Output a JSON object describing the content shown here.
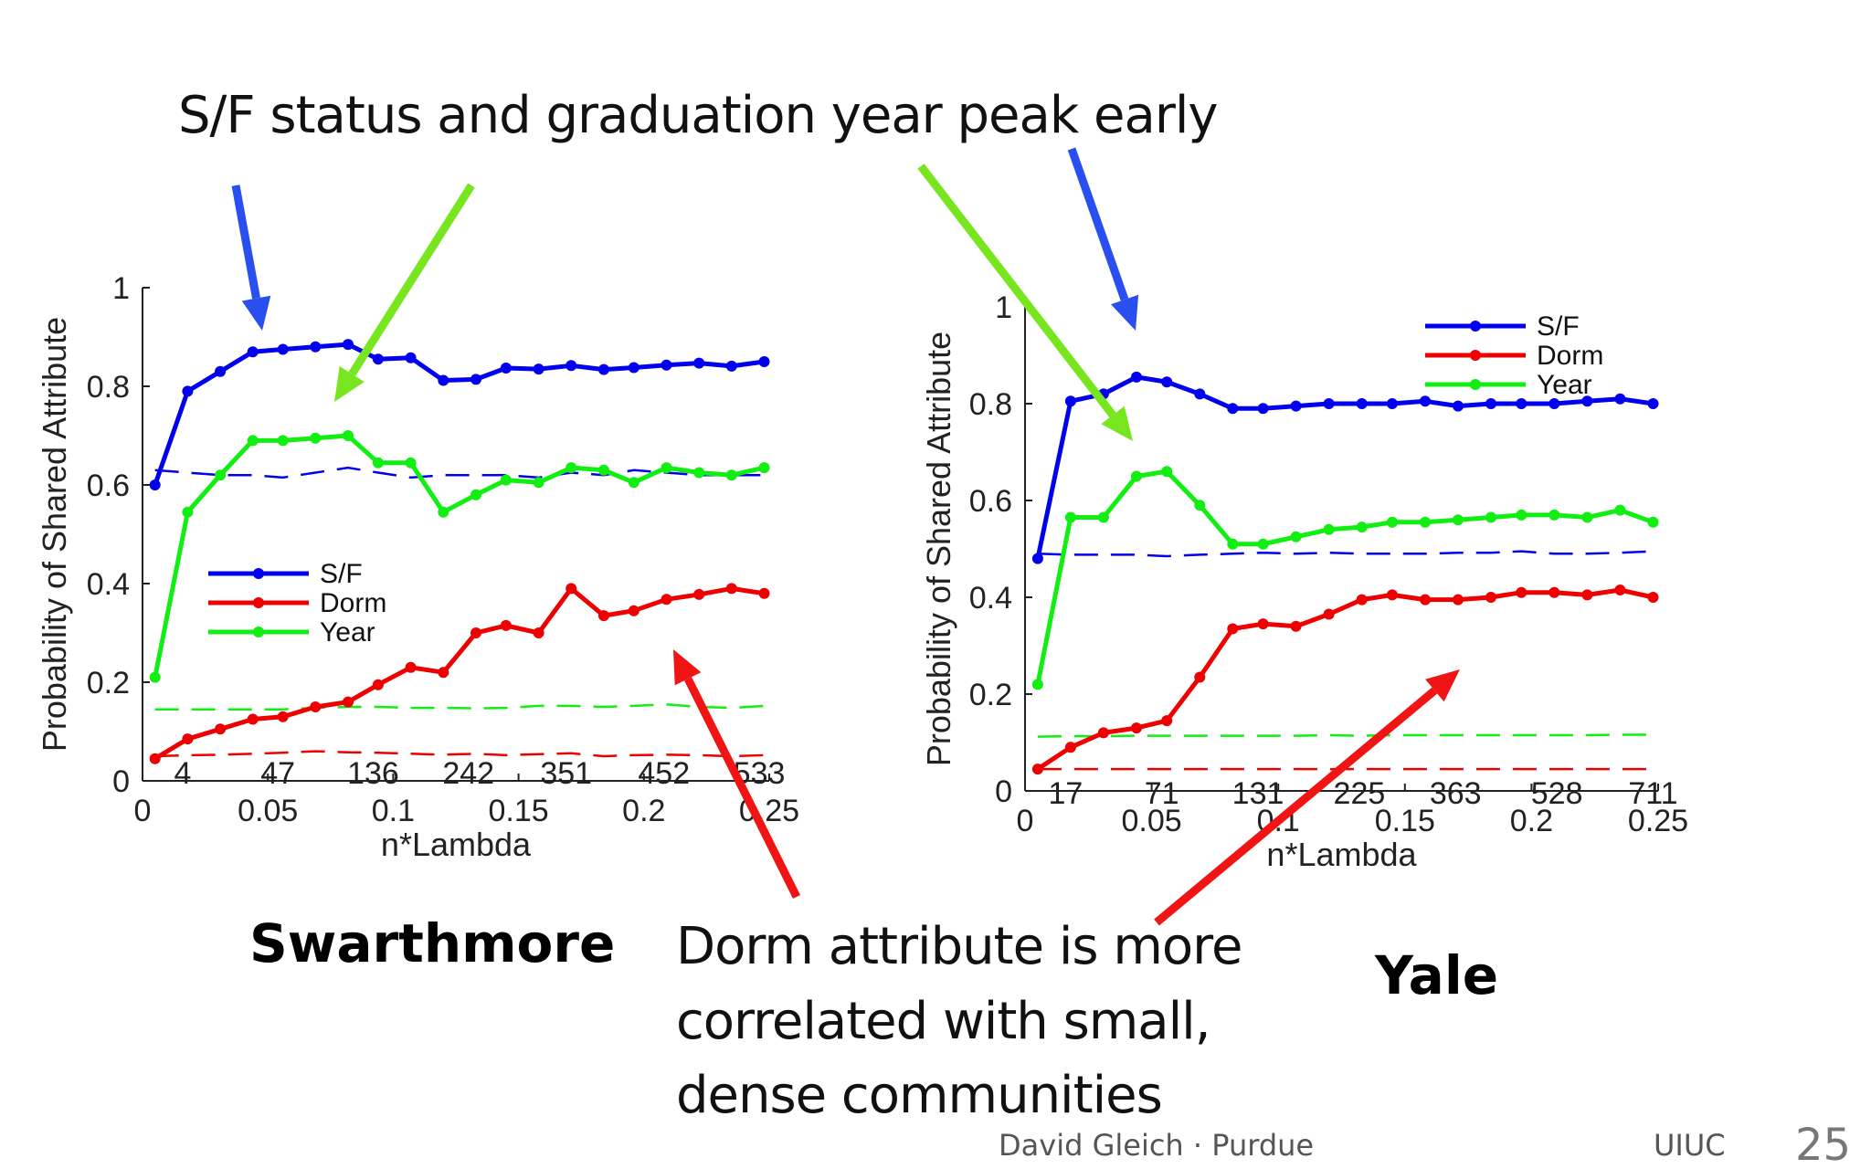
{
  "slide": {
    "headline": "S/F status and graduation year peak early",
    "dorm_note_lines": [
      "Dorm attribute is more",
      "correlated with small,",
      "dense communities"
    ],
    "left_school": "Swarthmore",
    "right_school": "Yale",
    "footer_author": "David Gleich · Purdue",
    "footer_venue": "UIUC",
    "page_number": "25",
    "arrow_colors": {
      "blue": "#2a4ff0",
      "green": "#77e61e",
      "red": "#f01414"
    }
  },
  "chart_data": [
    {
      "type": "line",
      "title": "",
      "xlabel": "n*Lambda",
      "ylabel": "Probability of Shared Attribute",
      "xlim": [
        0,
        0.25
      ],
      "ylim": [
        0,
        1
      ],
      "xticks": [
        "0",
        "0.05",
        "0.1",
        "0.15",
        "0.2",
        "0.25"
      ],
      "yticks": [
        "0",
        "0.2",
        "0.4",
        "0.6",
        "0.8",
        "1"
      ],
      "legend_position": "middle-left",
      "community_size_labels": [
        {
          "x": 0.016,
          "label": "4"
        },
        {
          "x": 0.054,
          "label": "47"
        },
        {
          "x": 0.092,
          "label": "136"
        },
        {
          "x": 0.13,
          "label": "242"
        },
        {
          "x": 0.169,
          "label": "351"
        },
        {
          "x": 0.208,
          "label": "452"
        },
        {
          "x": 0.246,
          "label": "533"
        }
      ],
      "x": [
        0.005,
        0.018,
        0.031,
        0.044,
        0.056,
        0.069,
        0.082,
        0.094,
        0.107,
        0.12,
        0.133,
        0.145,
        0.158,
        0.171,
        0.184,
        0.196,
        0.209,
        0.222,
        0.235,
        0.248
      ],
      "series": [
        {
          "name": "S/F",
          "color": "#0000ee",
          "values": [
            0.6,
            0.79,
            0.83,
            0.87,
            0.875,
            0.88,
            0.885,
            0.855,
            0.858,
            0.812,
            0.814,
            0.837,
            0.835,
            0.842,
            0.834,
            0.838,
            0.843,
            0.847,
            0.841,
            0.85
          ]
        },
        {
          "name": "Dorm",
          "color": "#ee0000",
          "values": [
            0.045,
            0.085,
            0.105,
            0.125,
            0.13,
            0.15,
            0.16,
            0.195,
            0.23,
            0.22,
            0.3,
            0.315,
            0.3,
            0.39,
            0.335,
            0.345,
            0.368,
            0.378,
            0.39,
            0.38
          ]
        },
        {
          "name": "Year",
          "color": "#11ee11",
          "values": [
            0.21,
            0.545,
            0.62,
            0.69,
            0.69,
            0.695,
            0.7,
            0.645,
            0.645,
            0.545,
            0.58,
            0.61,
            0.605,
            0.635,
            0.63,
            0.605,
            0.635,
            0.625,
            0.62,
            0.635
          ]
        }
      ],
      "baselines": [
        {
          "color": "#0000ee",
          "values": [
            0.63,
            0.625,
            0.62,
            0.62,
            0.615,
            0.625,
            0.635,
            0.625,
            0.615,
            0.62,
            0.62,
            0.62,
            0.615,
            0.625,
            0.62,
            0.63,
            0.625,
            0.62,
            0.62,
            0.62
          ]
        },
        {
          "color": "#11ee11",
          "values": [
            0.145,
            0.145,
            0.145,
            0.145,
            0.145,
            0.148,
            0.15,
            0.15,
            0.148,
            0.148,
            0.147,
            0.148,
            0.152,
            0.152,
            0.15,
            0.152,
            0.155,
            0.15,
            0.148,
            0.152
          ]
        },
        {
          "color": "#ee0000",
          "values": [
            0.05,
            0.052,
            0.053,
            0.055,
            0.057,
            0.06,
            0.058,
            0.057,
            0.055,
            0.053,
            0.055,
            0.052,
            0.054,
            0.056,
            0.05,
            0.052,
            0.053,
            0.052,
            0.05,
            0.052
          ]
        }
      ]
    },
    {
      "type": "line",
      "title": "",
      "xlabel": "n*Lambda",
      "ylabel": "Probability of Shared Attribute",
      "xlim": [
        0,
        0.25
      ],
      "ylim": [
        0,
        1
      ],
      "xticks": [
        "0",
        "0.05",
        "0.1",
        "0.15",
        "0.2",
        "0.25"
      ],
      "yticks": [
        "0",
        "0.2",
        "0.4",
        "0.6",
        "0.8",
        "1"
      ],
      "legend_position": "top-right",
      "community_size_labels": [
        {
          "x": 0.016,
          "label": "17"
        },
        {
          "x": 0.054,
          "label": "71"
        },
        {
          "x": 0.092,
          "label": "131"
        },
        {
          "x": 0.132,
          "label": "225"
        },
        {
          "x": 0.17,
          "label": "363"
        },
        {
          "x": 0.21,
          "label": "528"
        },
        {
          "x": 0.248,
          "label": "711"
        }
      ],
      "x": [
        0.005,
        0.018,
        0.031,
        0.044,
        0.056,
        0.069,
        0.082,
        0.094,
        0.107,
        0.12,
        0.133,
        0.145,
        0.158,
        0.171,
        0.184,
        0.196,
        0.209,
        0.222,
        0.235,
        0.248
      ],
      "series": [
        {
          "name": "S/F",
          "color": "#0000ee",
          "values": [
            0.48,
            0.805,
            0.82,
            0.855,
            0.845,
            0.82,
            0.79,
            0.79,
            0.795,
            0.8,
            0.8,
            0.8,
            0.805,
            0.795,
            0.8,
            0.8,
            0.8,
            0.805,
            0.81,
            0.8
          ]
        },
        {
          "name": "Dorm",
          "color": "#ee0000",
          "values": [
            0.045,
            0.09,
            0.12,
            0.13,
            0.145,
            0.235,
            0.335,
            0.345,
            0.34,
            0.365,
            0.395,
            0.405,
            0.395,
            0.395,
            0.4,
            0.41,
            0.41,
            0.405,
            0.415,
            0.4
          ]
        },
        {
          "name": "Year",
          "color": "#11ee11",
          "values": [
            0.22,
            0.565,
            0.565,
            0.65,
            0.66,
            0.59,
            0.51,
            0.51,
            0.525,
            0.54,
            0.545,
            0.555,
            0.555,
            0.56,
            0.565,
            0.57,
            0.57,
            0.565,
            0.58,
            0.555
          ]
        }
      ],
      "baselines": [
        {
          "color": "#0000ee",
          "values": [
            0.49,
            0.488,
            0.488,
            0.488,
            0.485,
            0.488,
            0.49,
            0.492,
            0.49,
            0.492,
            0.49,
            0.49,
            0.49,
            0.492,
            0.492,
            0.495,
            0.49,
            0.49,
            0.492,
            0.495
          ]
        },
        {
          "color": "#11ee11",
          "values": [
            0.112,
            0.113,
            0.113,
            0.114,
            0.114,
            0.114,
            0.114,
            0.114,
            0.114,
            0.115,
            0.114,
            0.115,
            0.115,
            0.115,
            0.115,
            0.115,
            0.115,
            0.115,
            0.116,
            0.116
          ]
        },
        {
          "color": "#ee0000",
          "values": [
            0.045,
            0.045,
            0.045,
            0.045,
            0.045,
            0.045,
            0.045,
            0.045,
            0.045,
            0.045,
            0.045,
            0.045,
            0.045,
            0.045,
            0.045,
            0.045,
            0.045,
            0.045,
            0.045,
            0.045
          ]
        }
      ]
    }
  ]
}
